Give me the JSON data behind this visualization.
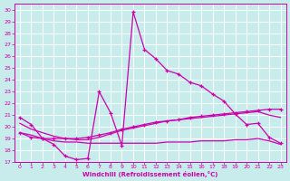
{
  "xlabel": "Windchill (Refroidissement éolien,°C)",
  "background_color": "#c8ecec",
  "grid_color": "#ffffff",
  "line_color": "#cc00aa",
  "xlim": [
    -0.5,
    23.5
  ],
  "ylim": [
    17,
    30.5
  ],
  "yticks": [
    17,
    18,
    19,
    20,
    21,
    22,
    23,
    24,
    25,
    26,
    27,
    28,
    29,
    30
  ],
  "xticks": [
    0,
    1,
    2,
    3,
    4,
    5,
    6,
    7,
    8,
    9,
    10,
    11,
    12,
    13,
    14,
    15,
    16,
    17,
    18,
    19,
    20,
    21,
    22,
    23
  ],
  "line1_x": [
    0,
    1,
    2,
    3,
    4,
    5,
    6,
    7,
    8,
    9,
    10,
    11,
    12,
    13,
    14,
    15,
    16,
    17,
    18,
    19,
    20,
    21,
    22,
    23
  ],
  "line1_y": [
    20.8,
    20.2,
    19.0,
    18.5,
    17.5,
    17.2,
    17.3,
    23.0,
    21.2,
    18.4,
    29.8,
    26.6,
    25.8,
    24.8,
    24.5,
    23.8,
    23.5,
    22.8,
    22.2,
    21.1,
    20.2,
    20.3,
    19.1,
    18.6
  ],
  "line2_x": [
    0,
    1,
    2,
    3,
    4,
    5,
    6,
    7,
    8,
    9,
    10,
    11,
    12,
    13,
    14,
    15,
    16,
    17,
    18,
    19,
    20,
    21,
    22,
    23
  ],
  "line2_y": [
    19.5,
    19.1,
    19.0,
    19.0,
    19.0,
    19.0,
    19.1,
    19.3,
    19.5,
    19.8,
    20.0,
    20.2,
    20.4,
    20.5,
    20.6,
    20.8,
    20.9,
    21.0,
    21.1,
    21.2,
    21.3,
    21.4,
    21.5,
    21.5
  ],
  "line3_x": [
    0,
    1,
    2,
    3,
    4,
    5,
    6,
    7,
    8,
    9,
    10,
    11,
    12,
    13,
    14,
    15,
    16,
    17,
    18,
    19,
    20,
    21,
    22,
    23
  ],
  "line3_y": [
    19.5,
    19.3,
    19.0,
    18.8,
    18.7,
    18.7,
    18.6,
    18.6,
    18.6,
    18.6,
    18.6,
    18.6,
    18.6,
    18.7,
    18.7,
    18.7,
    18.8,
    18.8,
    18.8,
    18.9,
    18.9,
    19.0,
    18.8,
    18.5
  ],
  "line4_x": [
    0,
    1,
    2,
    3,
    4,
    5,
    6,
    7,
    8,
    9,
    10,
    11,
    12,
    13,
    14,
    15,
    16,
    17,
    18,
    19,
    20,
    21,
    22,
    23
  ],
  "line4_y": [
    20.3,
    19.8,
    19.5,
    19.2,
    19.0,
    18.9,
    18.9,
    19.1,
    19.4,
    19.7,
    19.9,
    20.1,
    20.3,
    20.5,
    20.6,
    20.7,
    20.8,
    20.9,
    21.0,
    21.1,
    21.2,
    21.3,
    21.0,
    20.8
  ]
}
